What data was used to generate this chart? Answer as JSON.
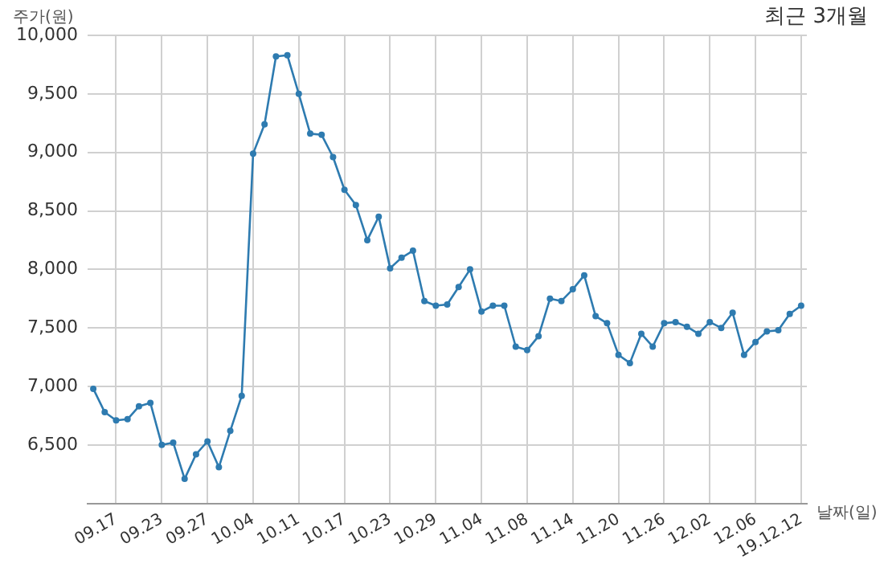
{
  "chart_data": {
    "type": "line",
    "title": "최근 3개월",
    "ylabel": "주가(원)",
    "xlabel": "날짜(일)",
    "categories": [
      null,
      null,
      "09.17",
      null,
      null,
      null,
      "09.23",
      null,
      null,
      null,
      "09.27",
      null,
      null,
      null,
      "10.04",
      null,
      null,
      null,
      "10.11",
      null,
      null,
      null,
      "10.17",
      null,
      null,
      null,
      "10.23",
      null,
      null,
      null,
      "10.29",
      null,
      null,
      null,
      "11.04",
      null,
      null,
      null,
      "11.08",
      null,
      null,
      null,
      "11.14",
      null,
      null,
      null,
      "11.20",
      null,
      null,
      null,
      "11.26",
      null,
      null,
      null,
      "12.02",
      null,
      null,
      null,
      "12.06",
      null,
      null,
      null,
      "19.12.12"
    ],
    "series": [
      {
        "color": "#2e7bb0",
        "values": [
          6980,
          6780,
          6710,
          6720,
          6830,
          6860,
          6500,
          6520,
          6210,
          6420,
          6530,
          6310,
          6620,
          6920,
          8990,
          9240,
          9820,
          9830,
          9500,
          9160,
          9150,
          8960,
          8680,
          8550,
          8250,
          8450,
          8010,
          8100,
          8160,
          7730,
          7690,
          7700,
          7850,
          8000,
          7640,
          7690,
          7690,
          7340,
          7310,
          7430,
          7750,
          7730,
          7830,
          7950,
          7600,
          7540,
          7270,
          7200,
          7450,
          7340,
          7540,
          7550,
          7510,
          7450,
          7550,
          7500,
          7630,
          7270,
          7380,
          7470,
          7480,
          7620,
          7690
        ]
      }
    ],
    "ylim": [
      6000,
      10000
    ],
    "yticks": [
      {
        "value": 6500,
        "label": "6,500"
      },
      {
        "value": 7000,
        "label": "7,000"
      },
      {
        "value": 7500,
        "label": "7,500"
      },
      {
        "value": 8000,
        "label": "8,000"
      },
      {
        "value": 8500,
        "label": "8,500"
      },
      {
        "value": 9000,
        "label": "9,000"
      },
      {
        "value": 9500,
        "label": "9,500"
      },
      {
        "value": 10000,
        "label": "10,000"
      }
    ],
    "grid": true,
    "marker": "circle",
    "line_style": "solid",
    "legend": false
  }
}
